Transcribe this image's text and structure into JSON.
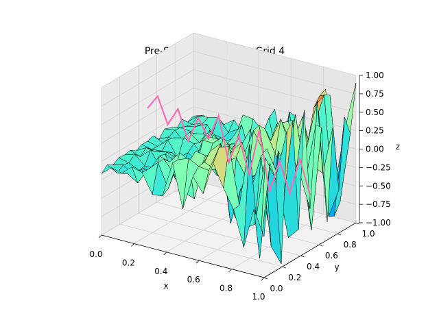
{
  "chart_data": {
    "type": "surface3d",
    "title": "Pre-Sweep Solution on Grid 4",
    "xlabel": "x",
    "ylabel": "y",
    "zlabel": "z",
    "xlim": [
      0,
      1
    ],
    "ylim": [
      0,
      1
    ],
    "zlim": [
      -1,
      1
    ],
    "x_ticks": [
      "0.0",
      "0.2",
      "0.4",
      "0.6",
      "0.8",
      "1.0"
    ],
    "y_ticks": [
      "0.0",
      "0.2",
      "0.4",
      "0.6",
      "0.8",
      "1.0"
    ],
    "z_ticks": [
      "−1.00",
      "−0.75",
      "−0.50",
      "−0.25",
      "0.00",
      "0.25",
      "0.50",
      "0.75",
      "1.00"
    ],
    "grid": true,
    "colormap": "rainbow",
    "surface_grid": [
      17,
      17
    ],
    "surface_description": "noisy surface, amplitude growing with x; small near x=0, spikes to about ±1 near x=1",
    "line_series": {
      "color": "#ff69b4",
      "path": "along y = 0.5",
      "x": [
        0.0,
        0.0625,
        0.125,
        0.1875,
        0.25,
        0.3125,
        0.375,
        0.4375,
        0.5,
        0.5625,
        0.625,
        0.6875,
        0.75,
        0.8125,
        0.875,
        0.9375,
        1.0
      ],
      "z": [
        0.35,
        0.55,
        0.2,
        0.45,
        0.05,
        0.4,
        0.15,
        0.5,
        -0.1,
        0.3,
        -0.2,
        0.45,
        -0.35,
        0.1,
        -0.3,
        0.2,
        -0.25
      ]
    }
  }
}
